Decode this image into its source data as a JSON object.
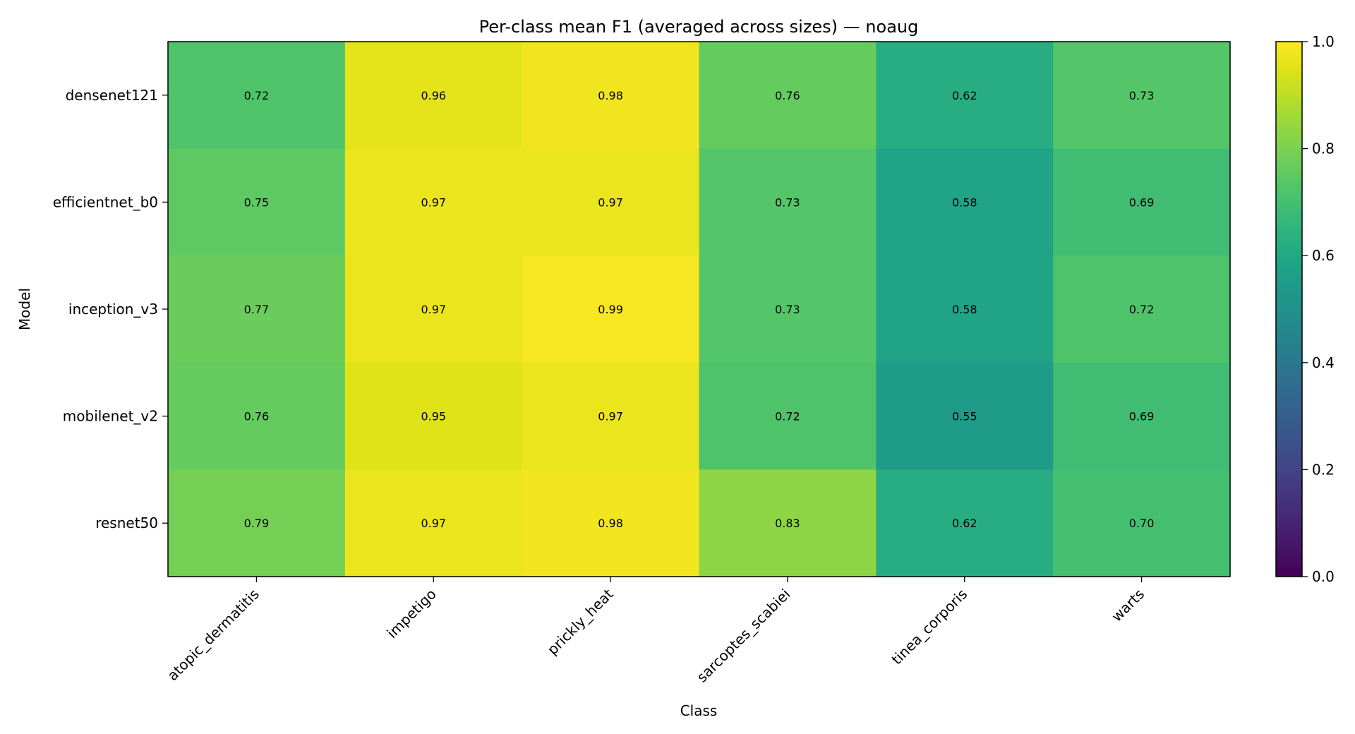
{
  "chart_data": {
    "type": "heatmap",
    "title": "Per-class mean F1 (averaged across sizes) — noaug",
    "xlabel": "Class",
    "ylabel": "Model",
    "x_categories": [
      "atopic_dermatitis",
      "impetigo",
      "prickly_heat",
      "sarcoptes_scabiei",
      "tinea_corporis",
      "warts"
    ],
    "y_categories": [
      "densenet121",
      "efficientnet_b0",
      "inception_v3",
      "mobilenet_v2",
      "resnet50"
    ],
    "values": [
      [
        0.72,
        0.96,
        0.98,
        0.76,
        0.62,
        0.73
      ],
      [
        0.75,
        0.97,
        0.97,
        0.73,
        0.58,
        0.69
      ],
      [
        0.77,
        0.97,
        0.99,
        0.73,
        0.58,
        0.72
      ],
      [
        0.76,
        0.95,
        0.97,
        0.72,
        0.55,
        0.69
      ],
      [
        0.79,
        0.97,
        0.98,
        0.83,
        0.62,
        0.7
      ]
    ],
    "value_labels": [
      [
        "0.72",
        "0.96",
        "0.98",
        "0.76",
        "0.62",
        "0.73"
      ],
      [
        "0.75",
        "0.97",
        "0.97",
        "0.73",
        "0.58",
        "0.69"
      ],
      [
        "0.77",
        "0.97",
        "0.99",
        "0.73",
        "0.58",
        "0.72"
      ],
      [
        "0.76",
        "0.95",
        "0.97",
        "0.72",
        "0.55",
        "0.69"
      ],
      [
        "0.79",
        "0.97",
        "0.98",
        "0.83",
        "0.62",
        "0.70"
      ]
    ],
    "colormap": "viridis",
    "vmin": 0.0,
    "vmax": 1.0,
    "colorbar_ticks": [
      "0.0",
      "0.2",
      "0.4",
      "0.6",
      "0.8",
      "1.0"
    ],
    "colorbar_position": "right"
  }
}
